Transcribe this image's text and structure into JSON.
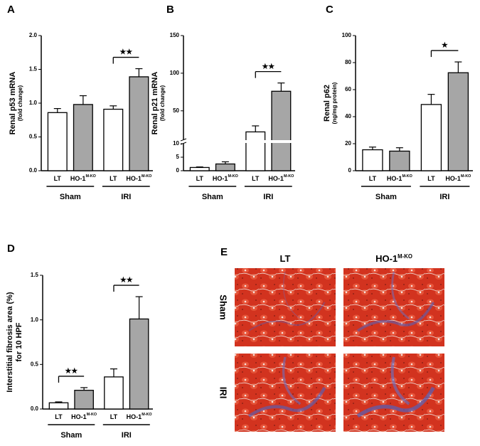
{
  "chart_data": [
    {
      "type": "bar",
      "panel": "A",
      "ylabel": "Renal p53 mRNA",
      "ylabel_sub": "(fold change)",
      "ylabel_sub_small": true,
      "categories": [
        "LT",
        "HO-1",
        "LT",
        "HO-1"
      ],
      "category_sup": [
        null,
        "M-KO",
        null,
        "M-KO"
      ],
      "groups": [
        "Sham",
        "IRI"
      ],
      "values": [
        0.86,
        0.98,
        0.91,
        1.39
      ],
      "errors": [
        0.06,
        0.13,
        0.05,
        0.12
      ],
      "colors": [
        "#ffffff",
        "#a6a6a6",
        "#ffffff",
        "#a6a6a6"
      ],
      "ylim": [
        0,
        2.0
      ],
      "yticks": [
        {
          "value": 0,
          "label": "0.0"
        },
        {
          "value": 0.5,
          "label": "0.5"
        },
        {
          "value": 1,
          "label": "1.0"
        },
        {
          "value": 1.5,
          "label": "1.5"
        },
        {
          "value": 2,
          "label": "2.0"
        }
      ],
      "significance": [
        {
          "bars": [
            2,
            3
          ],
          "label": "★★"
        }
      ]
    },
    {
      "type": "bar",
      "panel": "B",
      "ylabel": "Renal p21 mRNA",
      "ylabel_sub": "(fold change)",
      "ylabel_sub_small": true,
      "categories": [
        "LT",
        "HO-1",
        "LT",
        "HO-1"
      ],
      "category_sup": [
        null,
        "M-KO",
        null,
        "M-KO"
      ],
      "groups": [
        "Sham",
        "IRI"
      ],
      "values": [
        1.2,
        2.5,
        22,
        76
      ],
      "errors": [
        0.2,
        0.8,
        8,
        11
      ],
      "colors": [
        "#ffffff",
        "#a6a6a6",
        "#ffffff",
        "#a6a6a6"
      ],
      "ylim": [
        0,
        150
      ],
      "y_break": {
        "lower": [
          0,
          10
        ],
        "upper": [
          12,
          150
        ]
      },
      "yticks": [
        0,
        5,
        10,
        50,
        100,
        150
      ],
      "significance": [
        {
          "bars": [
            2,
            3
          ],
          "label": "★★"
        }
      ]
    },
    {
      "type": "bar",
      "panel": "C",
      "ylabel": "Renal p62",
      "ylabel_sub": "(ng/mg protein)",
      "ylabel_sub_small": true,
      "categories": [
        "LT",
        "HO-1",
        "LT",
        "HO-1"
      ],
      "category_sup": [
        null,
        "M-KO",
        null,
        "M-KO"
      ],
      "groups": [
        "Sham",
        "IRI"
      ],
      "values": [
        15.5,
        14.5,
        49,
        72.5
      ],
      "errors": [
        2,
        2.5,
        7.5,
        8
      ],
      "colors": [
        "#ffffff",
        "#a6a6a6",
        "#ffffff",
        "#a6a6a6"
      ],
      "ylim": [
        0,
        100
      ],
      "yticks": [
        0,
        20,
        40,
        60,
        80,
        100
      ],
      "significance": [
        {
          "bars": [
            2,
            3
          ],
          "label": "★"
        }
      ]
    },
    {
      "type": "bar",
      "panel": "D",
      "ylabel": "Interstitial fibrosis area (%)",
      "ylabel_sub": "for 10 HPF",
      "ylabel_sub_small": false,
      "categories": [
        "LT",
        "HO-1",
        "LT",
        "HO-1"
      ],
      "category_sup": [
        null,
        "M-KO",
        null,
        "M-KO"
      ],
      "groups": [
        "Sham",
        "IRI"
      ],
      "values": [
        0.07,
        0.21,
        0.36,
        1.01
      ],
      "errors": [
        0.01,
        0.03,
        0.09,
        0.25
      ],
      "colors": [
        "#ffffff",
        "#a6a6a6",
        "#ffffff",
        "#a6a6a6"
      ],
      "ylim": [
        0,
        1.5
      ],
      "yticks": [
        {
          "value": 0,
          "label": "0.0"
        },
        {
          "value": 0.5,
          "label": "0.5"
        },
        {
          "value": 1,
          "label": "1.0"
        },
        {
          "value": 1.5,
          "label": "1.5"
        }
      ],
      "significance": [
        {
          "bars": [
            0,
            1
          ],
          "label": "★★"
        },
        {
          "bars": [
            2,
            3
          ],
          "label": "★★"
        }
      ]
    }
  ],
  "panel_e": {
    "panel": "E",
    "columns": [
      "LT",
      "HO-1"
    ],
    "column_sup": [
      null,
      "M-KO"
    ],
    "rows": [
      "Sham",
      "IRI"
    ]
  }
}
